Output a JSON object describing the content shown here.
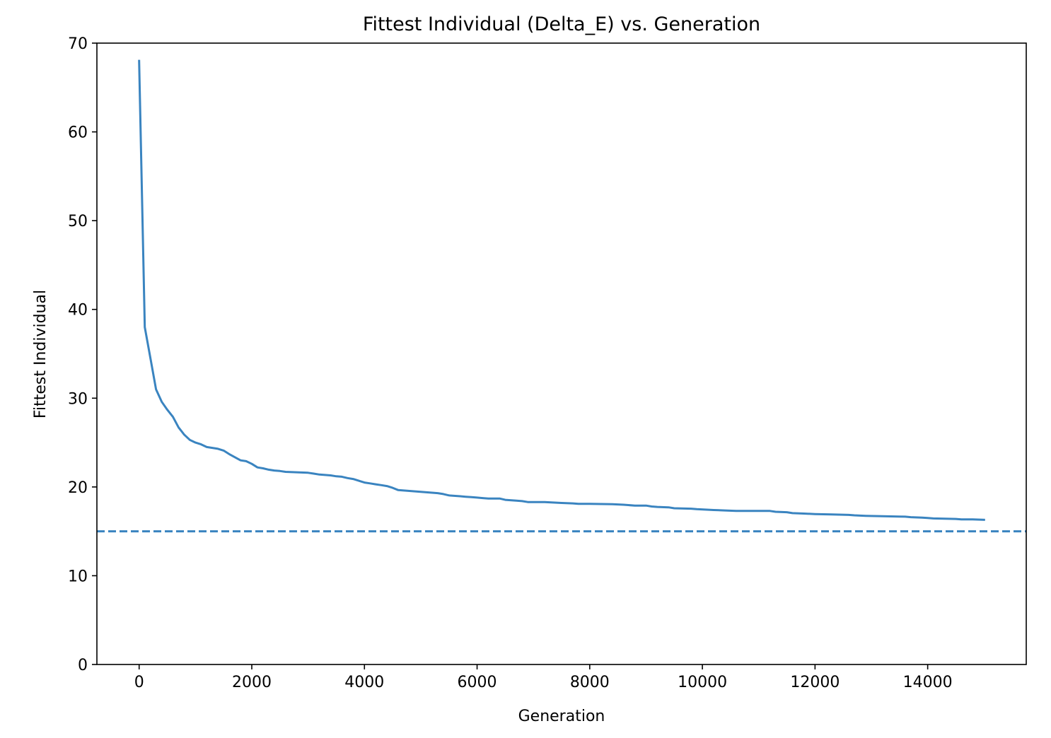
{
  "chart_data": {
    "type": "line",
    "title": "Fittest Individual (Delta_E) vs. Generation",
    "xlabel": "Generation",
    "ylabel": "Fittest Individual",
    "xlim": [
      -750,
      15750
    ],
    "ylim": [
      0,
      70
    ],
    "xticks": [
      0,
      2000,
      4000,
      6000,
      8000,
      10000,
      12000,
      14000
    ],
    "yticks": [
      0,
      10,
      20,
      30,
      40,
      50,
      60,
      70
    ],
    "grid": false,
    "legend": "none",
    "line_color": "#3a84c0",
    "series": [
      {
        "x": [
          0,
          100,
          200,
          300,
          400,
          500,
          600,
          700,
          800,
          900,
          1000,
          1100,
          1200,
          1300,
          1400,
          1500,
          1600,
          1700,
          1800,
          1900,
          2000,
          2100,
          2200,
          2300,
          2400,
          2500,
          2600,
          2800,
          3000,
          3100,
          3200,
          3400,
          3500,
          3600,
          3700,
          3800,
          3900,
          4000,
          4100,
          4200,
          4300,
          4400,
          4500,
          4600,
          4800,
          5000,
          5200,
          5300,
          5400,
          5500,
          5700,
          5800,
          5900,
          6000,
          6100,
          6200,
          6400,
          6500,
          6700,
          6800,
          6900,
          7000,
          7200,
          7500,
          7700,
          7800,
          8000,
          8400,
          8600,
          8800,
          9000,
          9100,
          9200,
          9400,
          9500,
          9800,
          9900,
          10200,
          10400,
          10600,
          11200,
          11300,
          11500,
          11600,
          11800,
          12000,
          12300,
          12600,
          12700,
          12900,
          13200,
          13600,
          13700,
          13900,
          14000,
          14100,
          14500,
          14600,
          14800,
          15000
        ],
        "y": [
          68,
          38,
          34.5,
          31,
          29.6,
          28.7,
          27.9,
          26.7,
          25.9,
          25.3,
          25,
          24.8,
          24.5,
          24.4,
          24.3,
          24.1,
          23.7,
          23.35,
          23,
          22.9,
          22.6,
          22.2,
          22.1,
          21.95,
          21.85,
          21.8,
          21.7,
          21.65,
          21.6,
          21.5,
          21.4,
          21.3,
          21.2,
          21.15,
          21.0,
          20.9,
          20.7,
          20.5,
          20.4,
          20.3,
          20.2,
          20.1,
          19.9,
          19.65,
          19.55,
          19.45,
          19.35,
          19.3,
          19.2,
          19.05,
          18.95,
          18.9,
          18.85,
          18.8,
          18.75,
          18.7,
          18.7,
          18.55,
          18.45,
          18.4,
          18.3,
          18.3,
          18.3,
          18.2,
          18.15,
          18.1,
          18.1,
          18.05,
          18.0,
          17.9,
          17.9,
          17.8,
          17.75,
          17.7,
          17.6,
          17.55,
          17.5,
          17.4,
          17.35,
          17.3,
          17.3,
          17.2,
          17.15,
          17.05,
          17.0,
          16.95,
          16.9,
          16.85,
          16.8,
          16.75,
          16.7,
          16.65,
          16.6,
          16.55,
          16.5,
          16.45,
          16.4,
          16.35,
          16.35,
          16.3
        ]
      }
    ],
    "reference_line": {
      "y": 15,
      "style": "dashed",
      "color": "#3a84c0"
    }
  }
}
